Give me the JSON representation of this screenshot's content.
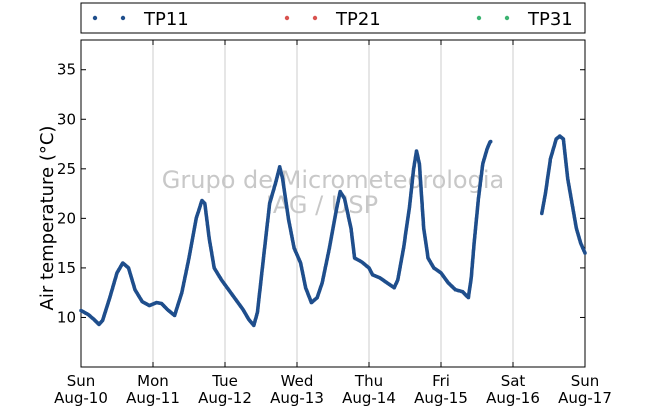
{
  "chart_data": {
    "type": "scatter",
    "title": "",
    "ylabel": "Air temperature (°C)",
    "xlabel": "",
    "ylim": [
      5,
      38
    ],
    "yticks": [
      10,
      15,
      20,
      25,
      30,
      35
    ],
    "xlim": [
      0,
      7
    ],
    "x_unit": "days since Sun Aug-10 00:00",
    "xticks": [
      {
        "day": "Sun",
        "date": "Aug-10"
      },
      {
        "day": "Mon",
        "date": "Aug-11"
      },
      {
        "day": "Tue",
        "date": "Aug-12"
      },
      {
        "day": "Wed",
        "date": "Aug-13"
      },
      {
        "day": "Thu",
        "date": "Aug-14"
      },
      {
        "day": "Fri",
        "date": "Aug-15"
      },
      {
        "day": "Sat",
        "date": "Aug-16"
      },
      {
        "day": "Sun",
        "date": "Aug-17"
      }
    ],
    "grid": "vertical",
    "legend_position": "top",
    "watermark": [
      "Grupo de Micrometeorologia",
      "IAG / USP"
    ],
    "series": [
      {
        "name": "TP11",
        "color": "#1f4e8c",
        "points": [
          [
            0.0,
            10.7
          ],
          [
            0.1,
            10.3
          ],
          [
            0.18,
            9.8
          ],
          [
            0.25,
            9.3
          ],
          [
            0.3,
            9.7
          ],
          [
            0.4,
            12.0
          ],
          [
            0.5,
            14.5
          ],
          [
            0.58,
            15.5
          ],
          [
            0.66,
            15.0
          ],
          [
            0.75,
            12.8
          ],
          [
            0.85,
            11.6
          ],
          [
            0.95,
            11.2
          ],
          [
            1.05,
            11.5
          ],
          [
            1.12,
            11.4
          ],
          [
            1.2,
            10.8
          ],
          [
            1.3,
            10.2
          ],
          [
            1.4,
            12.5
          ],
          [
            1.5,
            16.0
          ],
          [
            1.6,
            20.0
          ],
          [
            1.68,
            21.8
          ],
          [
            1.72,
            21.5
          ],
          [
            1.78,
            18.0
          ],
          [
            1.85,
            15.0
          ],
          [
            1.95,
            13.8
          ],
          [
            2.05,
            12.8
          ],
          [
            2.15,
            11.8
          ],
          [
            2.25,
            10.8
          ],
          [
            2.33,
            9.8
          ],
          [
            2.4,
            9.2
          ],
          [
            2.45,
            10.5
          ],
          [
            2.55,
            17.0
          ],
          [
            2.62,
            21.5
          ],
          [
            2.7,
            23.5
          ],
          [
            2.76,
            25.2
          ],
          [
            2.8,
            24.0
          ],
          [
            2.88,
            20.0
          ],
          [
            2.96,
            17.0
          ],
          [
            3.05,
            15.5
          ],
          [
            3.12,
            13.0
          ],
          [
            3.2,
            11.5
          ],
          [
            3.28,
            12.0
          ],
          [
            3.35,
            13.5
          ],
          [
            3.45,
            17.0
          ],
          [
            3.55,
            21.0
          ],
          [
            3.6,
            22.7
          ],
          [
            3.66,
            22.0
          ],
          [
            3.75,
            19.0
          ],
          [
            3.8,
            16.0
          ],
          [
            3.9,
            15.6
          ],
          [
            4.0,
            15.0
          ],
          [
            4.05,
            14.3
          ],
          [
            4.15,
            14.0
          ],
          [
            4.25,
            13.5
          ],
          [
            4.35,
            13.0
          ],
          [
            4.4,
            13.8
          ],
          [
            4.48,
            17.0
          ],
          [
            4.56,
            21.0
          ],
          [
            4.62,
            25.0
          ],
          [
            4.66,
            26.8
          ],
          [
            4.7,
            25.5
          ],
          [
            4.76,
            19.0
          ],
          [
            4.82,
            16.0
          ],
          [
            4.9,
            15.0
          ],
          [
            5.0,
            14.5
          ],
          [
            5.1,
            13.5
          ],
          [
            5.2,
            12.8
          ],
          [
            5.3,
            12.6
          ],
          [
            5.38,
            12.0
          ],
          [
            5.42,
            14.0
          ],
          [
            5.46,
            17.5
          ],
          [
            5.52,
            22.0
          ],
          [
            5.58,
            25.5
          ],
          [
            5.64,
            27.0
          ],
          [
            5.68,
            27.7
          ],
          [
            5.7,
            27.8
          ],
          [
            6.4,
            20.5
          ],
          [
            6.45,
            22.5
          ],
          [
            6.52,
            26.0
          ],
          [
            6.6,
            28.0
          ],
          [
            6.65,
            28.3
          ],
          [
            6.7,
            28.0
          ],
          [
            6.76,
            24.0
          ],
          [
            6.82,
            21.5
          ],
          [
            6.88,
            19.0
          ],
          [
            6.94,
            17.5
          ],
          [
            7.0,
            16.5
          ]
        ]
      },
      {
        "name": "TP21",
        "color": "#d9534f",
        "points": []
      },
      {
        "name": "TP31",
        "color": "#3cb371",
        "points": []
      }
    ]
  }
}
